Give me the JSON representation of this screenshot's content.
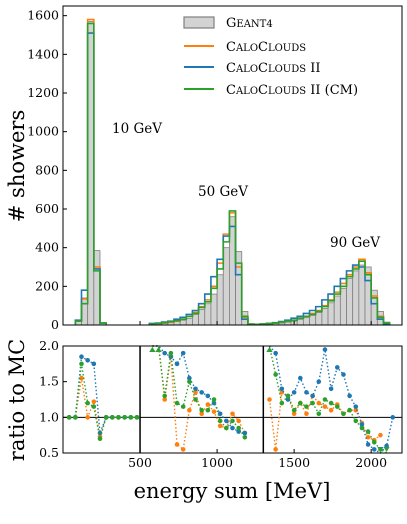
{
  "colors": {
    "geant4_fill": "#d3d3d3",
    "geant4_edge": "#7f7f7f",
    "caloclouds": "#ff7f0e",
    "caloclouds2": "#1f77b4",
    "caloclouds2_cm": "#2ca02c"
  },
  "chart_data": [
    {
      "type": "histogram",
      "ylabel": "# showers",
      "ylim": [
        0,
        1650
      ],
      "xlim": [
        0,
        2200
      ],
      "yticks": [
        0,
        200,
        400,
        600,
        800,
        1000,
        1200,
        1400,
        1600
      ],
      "legend_position": "top-right",
      "legend": [
        {
          "caps": "G",
          "small": "EANT4"
        },
        {
          "caps": "C",
          "small": "ALO",
          "caps2": "C",
          "small2": "LOUDS",
          "rest": ""
        },
        {
          "caps": "C",
          "small": "ALO",
          "caps2": "C",
          "small2": "LOUDS",
          "rest": " II"
        },
        {
          "caps": "C",
          "small": "ALO",
          "caps2": "C",
          "small2": "LOUDS",
          "rest": " II (CM)"
        }
      ],
      "annotations": [
        "10 GeV",
        "50 GeV",
        "90 GeV"
      ],
      "bin_width": 40,
      "bins": [
        {
          "x0": 80,
          "g4": 20,
          "cc": 20,
          "cc2": 25,
          "cm": 20
        },
        {
          "x0": 120,
          "g4": 140,
          "cc": 135,
          "cc2": 180,
          "cm": 110
        },
        {
          "x0": 160,
          "g4": 1570,
          "cc": 1580,
          "cc2": 1510,
          "cm": 1560
        },
        {
          "x0": 200,
          "g4": 385,
          "cc": 300,
          "cc2": 290,
          "cm": 280
        },
        {
          "x0": 240,
          "g4": 10,
          "cc": 10,
          "cc2": 10,
          "cm": 10
        },
        {
          "x0": 560,
          "g4": 5,
          "cc": 5,
          "cc2": 8,
          "cm": 5
        },
        {
          "x0": 600,
          "g4": 8,
          "cc": 8,
          "cc2": 10,
          "cm": 8
        },
        {
          "x0": 640,
          "g4": 10,
          "cc": 10,
          "cc2": 15,
          "cm": 12
        },
        {
          "x0": 680,
          "g4": 12,
          "cc": 15,
          "cc2": 20,
          "cm": 18
        },
        {
          "x0": 720,
          "g4": 18,
          "cc": 20,
          "cc2": 30,
          "cm": 22
        },
        {
          "x0": 760,
          "g4": 25,
          "cc": 30,
          "cc2": 40,
          "cm": 30
        },
        {
          "x0": 800,
          "g4": 35,
          "cc": 45,
          "cc2": 55,
          "cm": 45
        },
        {
          "x0": 840,
          "g4": 55,
          "cc": 65,
          "cc2": 75,
          "cm": 60
        },
        {
          "x0": 880,
          "g4": 80,
          "cc": 95,
          "cc2": 110,
          "cm": 90
        },
        {
          "x0": 920,
          "g4": 110,
          "cc": 130,
          "cc2": 160,
          "cm": 120
        },
        {
          "x0": 960,
          "g4": 160,
          "cc": 200,
          "cc2": 250,
          "cm": 190
        },
        {
          "x0": 1000,
          "g4": 260,
          "cc": 320,
          "cc2": 340,
          "cm": 290
        },
        {
          "x0": 1040,
          "g4": 400,
          "cc": 470,
          "cc2": 460,
          "cm": 430
        },
        {
          "x0": 1080,
          "g4": 560,
          "cc": 580,
          "cc2": 510,
          "cm": 590
        },
        {
          "x0": 1120,
          "g4": 380,
          "cc": 300,
          "cc2": 260,
          "cm": 320
        },
        {
          "x0": 1160,
          "g4": 70,
          "cc": 40,
          "cc2": 30,
          "cm": 45
        },
        {
          "x0": 1200,
          "g4": 5,
          "cc": 5,
          "cc2": 3,
          "cm": 5
        },
        {
          "x0": 1240,
          "g4": 3,
          "cc": 3,
          "cc2": 3,
          "cm": 3
        },
        {
          "x0": 1280,
          "g4": 3,
          "cc": 5,
          "cc2": 5,
          "cm": 5
        },
        {
          "x0": 1320,
          "g4": 5,
          "cc": 8,
          "cc2": 8,
          "cm": 8
        },
        {
          "x0": 1360,
          "g4": 8,
          "cc": 10,
          "cc2": 12,
          "cm": 10
        },
        {
          "x0": 1400,
          "g4": 10,
          "cc": 15,
          "cc2": 18,
          "cm": 15
        },
        {
          "x0": 1440,
          "g4": 15,
          "cc": 20,
          "cc2": 25,
          "cm": 20
        },
        {
          "x0": 1480,
          "g4": 20,
          "cc": 25,
          "cc2": 35,
          "cm": 25
        },
        {
          "x0": 1520,
          "g4": 28,
          "cc": 35,
          "cc2": 45,
          "cm": 35
        },
        {
          "x0": 1560,
          "g4": 38,
          "cc": 45,
          "cc2": 60,
          "cm": 45
        },
        {
          "x0": 1600,
          "g4": 50,
          "cc": 60,
          "cc2": 75,
          "cm": 55
        },
        {
          "x0": 1640,
          "g4": 65,
          "cc": 75,
          "cc2": 95,
          "cm": 70
        },
        {
          "x0": 1680,
          "g4": 85,
          "cc": 100,
          "cc2": 130,
          "cm": 95
        },
        {
          "x0": 1720,
          "g4": 115,
          "cc": 130,
          "cc2": 160,
          "cm": 125
        },
        {
          "x0": 1760,
          "g4": 150,
          "cc": 170,
          "cc2": 200,
          "cm": 160
        },
        {
          "x0": 1800,
          "g4": 190,
          "cc": 215,
          "cc2": 240,
          "cm": 200
        },
        {
          "x0": 1840,
          "g4": 240,
          "cc": 260,
          "cc2": 280,
          "cm": 250
        },
        {
          "x0": 1880,
          "g4": 280,
          "cc": 300,
          "cc2": 310,
          "cm": 290
        },
        {
          "x0": 1920,
          "g4": 310,
          "cc": 340,
          "cc2": 300,
          "cm": 330
        },
        {
          "x0": 1960,
          "g4": 300,
          "cc": 270,
          "cc2": 230,
          "cm": 260
        },
        {
          "x0": 2000,
          "g4": 180,
          "cc": 150,
          "cc2": 110,
          "cm": 140
        },
        {
          "x0": 2040,
          "g4": 70,
          "cc": 45,
          "cc2": 30,
          "cm": 40
        },
        {
          "x0": 2080,
          "g4": 15,
          "cc": 10,
          "cc2": 5,
          "cm": 10
        }
      ]
    },
    {
      "type": "scatter",
      "ylabel": "ratio to MC",
      "xlabel": "energy sum [MeV]",
      "ylim": [
        0.5,
        2.0
      ],
      "xlim": [
        0,
        2200
      ],
      "yticks": [
        0.5,
        1.0,
        1.5,
        2.0
      ],
      "xticks": [
        500,
        1000,
        1500,
        2000
      ],
      "reference_line": 1.0,
      "separators": [
        500,
        1300
      ],
      "series": [
        {
          "key": "cc",
          "points": [
            [
              40,
              1.0
            ],
            [
              80,
              1.0
            ],
            [
              120,
              1.55
            ],
            [
              160,
              1.0
            ],
            [
              200,
              1.22
            ],
            [
              240,
              0.73
            ],
            [
              280,
              1.0
            ],
            [
              320,
              1.0
            ],
            [
              360,
              1.0
            ],
            [
              400,
              1.0
            ],
            [
              440,
              1.0
            ],
            [
              480,
              1.0
            ],
            [
              580,
              2.0
            ],
            [
              620,
              2.0
            ],
            [
              660,
              1.25
            ],
            [
              700,
              1.85
            ],
            [
              740,
              0.62
            ],
            [
              780,
              0.55
            ],
            [
              820,
              1.1
            ],
            [
              860,
              1.35
            ],
            [
              900,
              1.05
            ],
            [
              940,
              1.18
            ],
            [
              980,
              1.08
            ],
            [
              1020,
              0.88
            ],
            [
              1060,
              0.85
            ],
            [
              1100,
              1.05
            ],
            [
              1140,
              0.95
            ],
            [
              1180,
              0.78
            ],
            [
              1340,
              1.25
            ],
            [
              1380,
              0.55
            ],
            [
              1420,
              1.35
            ],
            [
              1460,
              1.3
            ],
            [
              1500,
              1.05
            ],
            [
              1540,
              1.2
            ],
            [
              1580,
              1.05
            ],
            [
              1620,
              1.3
            ],
            [
              1660,
              1.2
            ],
            [
              1700,
              1.15
            ],
            [
              1740,
              1.1
            ],
            [
              1780,
              1.18
            ],
            [
              1820,
              1.05
            ],
            [
              1860,
              1.1
            ],
            [
              1900,
              1.1
            ],
            [
              1940,
              0.92
            ],
            [
              1980,
              0.72
            ],
            [
              2020,
              0.68
            ],
            [
              2060,
              0.75
            ]
          ]
        },
        {
          "key": "cc2",
          "points": [
            [
              40,
              1.0
            ],
            [
              80,
              1.0
            ],
            [
              120,
              1.85
            ],
            [
              160,
              1.8
            ],
            [
              200,
              1.75
            ],
            [
              240,
              0.78
            ],
            [
              280,
              1.0
            ],
            [
              320,
              1.0
            ],
            [
              360,
              1.0
            ],
            [
              400,
              1.0
            ],
            [
              440,
              1.0
            ],
            [
              480,
              1.0
            ],
            [
              580,
              2.0
            ],
            [
              620,
              2.0
            ],
            [
              660,
              1.9
            ],
            [
              700,
              1.85
            ],
            [
              740,
              1.75
            ],
            [
              780,
              1.9
            ],
            [
              820,
              1.55
            ],
            [
              860,
              1.4
            ],
            [
              900,
              1.35
            ],
            [
              940,
              1.3
            ],
            [
              980,
              1.2
            ],
            [
              1020,
              1.05
            ],
            [
              1060,
              0.95
            ],
            [
              1100,
              0.85
            ],
            [
              1140,
              0.8
            ],
            [
              1180,
              0.78
            ],
            [
              1340,
              2.0
            ],
            [
              1380,
              1.9
            ],
            [
              1420,
              1.4
            ],
            [
              1460,
              1.25
            ],
            [
              1500,
              1.35
            ],
            [
              1540,
              1.55
            ],
            [
              1580,
              1.35
            ],
            [
              1620,
              1.3
            ],
            [
              1660,
              1.5
            ],
            [
              1700,
              1.95
            ],
            [
              1740,
              1.4
            ],
            [
              1780,
              1.7
            ],
            [
              1820,
              1.6
            ],
            [
              1860,
              1.3
            ],
            [
              1900,
              1.15
            ],
            [
              1940,
              0.9
            ],
            [
              1980,
              0.62
            ],
            [
              2020,
              0.55
            ],
            [
              2060,
              0.5
            ],
            [
              2100,
              0.6
            ],
            [
              2140,
              1.0
            ]
          ]
        },
        {
          "key": "cm",
          "points": [
            [
              40,
              1.0
            ],
            [
              80,
              1.0
            ],
            [
              120,
              1.75
            ],
            [
              160,
              1.2
            ],
            [
              200,
              1.15
            ],
            [
              240,
              0.7
            ],
            [
              280,
              1.0
            ],
            [
              320,
              1.0
            ],
            [
              360,
              1.0
            ],
            [
              400,
              1.0
            ],
            [
              440,
              1.0
            ],
            [
              480,
              1.0
            ],
            [
              580,
              2.0
            ],
            [
              620,
              2.0
            ],
            [
              660,
              1.3
            ],
            [
              700,
              1.9
            ],
            [
              740,
              1.2
            ],
            [
              780,
              1.15
            ],
            [
              820,
              1.5
            ],
            [
              860,
              1.25
            ],
            [
              900,
              1.1
            ],
            [
              940,
              1.1
            ],
            [
              980,
              1.25
            ],
            [
              1020,
              0.95
            ],
            [
              1060,
              0.85
            ],
            [
              1100,
              0.95
            ],
            [
              1140,
              0.85
            ],
            [
              1180,
              0.72
            ],
            [
              1340,
              2.0
            ],
            [
              1380,
              1.6
            ],
            [
              1420,
              1.2
            ],
            [
              1460,
              1.3
            ],
            [
              1500,
              1.1
            ],
            [
              1540,
              1.2
            ],
            [
              1580,
              1.15
            ],
            [
              1620,
              1.2
            ],
            [
              1660,
              1.05
            ],
            [
              1700,
              1.25
            ],
            [
              1740,
              1.2
            ],
            [
              1780,
              1.15
            ],
            [
              1820,
              1.05
            ],
            [
              1860,
              1.1
            ],
            [
              1900,
              0.95
            ],
            [
              1940,
              0.85
            ],
            [
              1980,
              0.8
            ],
            [
              2020,
              0.65
            ],
            [
              2060,
              0.55
            ],
            [
              2100,
              0.5
            ]
          ]
        }
      ]
    }
  ]
}
